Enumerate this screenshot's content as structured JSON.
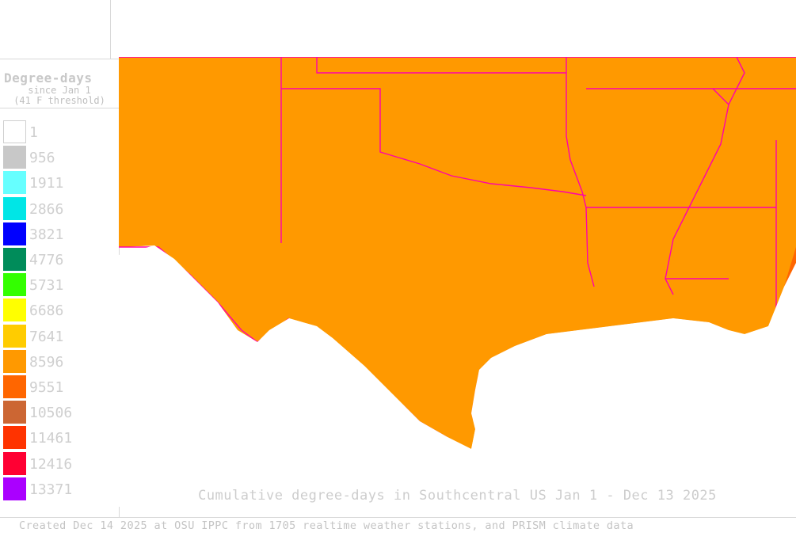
{
  "legend": {
    "title": "Degree-days",
    "subtitle_1": "since Jan 1",
    "subtitle_2": "(41 F threshold)",
    "items": [
      {
        "label": "1",
        "color": "#ffffff"
      },
      {
        "label": "956",
        "color": "#c8c8c8"
      },
      {
        "label": "1911",
        "color": "#66ffff"
      },
      {
        "label": "2866",
        "color": "#00e6e6"
      },
      {
        "label": "3821",
        "color": "#0000ff"
      },
      {
        "label": "4776",
        "color": "#008c5a"
      },
      {
        "label": "5731",
        "color": "#33ff00"
      },
      {
        "label": "6686",
        "color": "#ffff00"
      },
      {
        "label": "7641",
        "color": "#ffcc00"
      },
      {
        "label": "8596",
        "color": "#ff9900"
      },
      {
        "label": "9551",
        "color": "#ff6600"
      },
      {
        "label": "10506",
        "color": "#cc6633"
      },
      {
        "label": "11461",
        "color": "#ff3300"
      },
      {
        "label": "12416",
        "color": "#ff0033"
      },
      {
        "label": "13371",
        "color": "#aa00ff"
      }
    ]
  },
  "caption": "Cumulative degree-days in Southcentral US Jan 1 - Dec 13 2025",
  "footer": "Created Dec 14 2025 at OSU IPPC from 1705 realtime weather stations, and PRISM climate data",
  "colors": {
    "state_border": "#ff00aa",
    "county_border": "#f0e0c8"
  }
}
